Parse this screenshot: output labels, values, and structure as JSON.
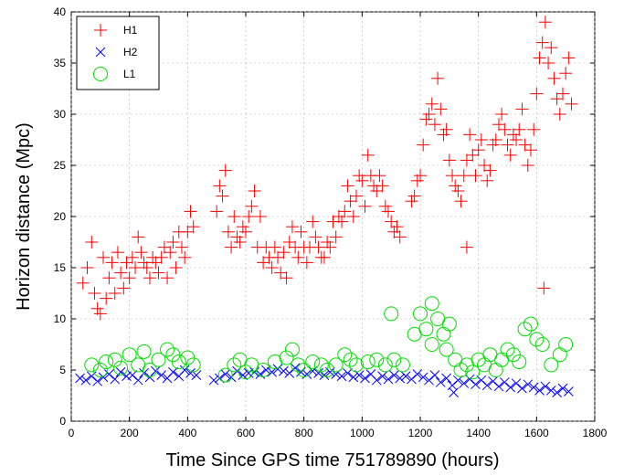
{
  "chart_data": {
    "type": "scatter",
    "title": "",
    "xlabel": "Time Since GPS time 751789890 (hours)",
    "ylabel": "Horizon distance (Mpc)",
    "xlim": [
      0,
      1800
    ],
    "ylim": [
      0,
      40
    ],
    "xticks": [
      0,
      200,
      400,
      600,
      800,
      1000,
      1200,
      1400,
      1600,
      1800
    ],
    "yticks": [
      0,
      5,
      10,
      15,
      20,
      25,
      30,
      35,
      40
    ],
    "grid": true,
    "legend_position": "top-left",
    "series": [
      {
        "name": "H1",
        "marker": "plus",
        "color": "#ff0000",
        "points": [
          [
            40,
            13.5
          ],
          [
            55,
            15.0
          ],
          [
            70,
            17.5
          ],
          [
            80,
            12.5
          ],
          [
            90,
            11.0
          ],
          [
            100,
            10.5
          ],
          [
            110,
            16.0
          ],
          [
            120,
            12.0
          ],
          [
            130,
            14.0
          ],
          [
            140,
            15.5
          ],
          [
            150,
            12.5
          ],
          [
            160,
            16.5
          ],
          [
            170,
            14.5
          ],
          [
            180,
            13.0
          ],
          [
            190,
            15.5
          ],
          [
            200,
            14.0
          ],
          [
            210,
            16.0
          ],
          [
            220,
            15.0
          ],
          [
            230,
            18.0
          ],
          [
            240,
            16.5
          ],
          [
            250,
            15.5
          ],
          [
            260,
            15.0
          ],
          [
            270,
            14.0
          ],
          [
            280,
            16.0
          ],
          [
            290,
            15.5
          ],
          [
            300,
            14.5
          ],
          [
            310,
            16.0
          ],
          [
            320,
            17.0
          ],
          [
            330,
            14.0
          ],
          [
            340,
            16.5
          ],
          [
            350,
            17.5
          ],
          [
            360,
            15.0
          ],
          [
            370,
            18.5
          ],
          [
            380,
            17.0
          ],
          [
            390,
            16.0
          ],
          [
            400,
            18.5
          ],
          [
            410,
            20.5
          ],
          [
            420,
            19.0
          ],
          [
            500,
            20.5
          ],
          [
            510,
            23.0
          ],
          [
            520,
            22.0
          ],
          [
            530,
            24.5
          ],
          [
            540,
            18.5
          ],
          [
            550,
            17.0
          ],
          [
            560,
            20.0
          ],
          [
            570,
            18.0
          ],
          [
            580,
            17.5
          ],
          [
            590,
            19.0
          ],
          [
            600,
            18.5
          ],
          [
            610,
            20.0
          ],
          [
            620,
            21.0
          ],
          [
            630,
            22.5
          ],
          [
            640,
            17.0
          ],
          [
            650,
            20.0
          ],
          [
            660,
            15.5
          ],
          [
            670,
            17.0
          ],
          [
            680,
            16.0
          ],
          [
            690,
            15.0
          ],
          [
            700,
            17.0
          ],
          [
            710,
            16.0
          ],
          [
            720,
            14.5
          ],
          [
            730,
            16.5
          ],
          [
            740,
            14.0
          ],
          [
            750,
            17.5
          ],
          [
            760,
            19.0
          ],
          [
            770,
            17.0
          ],
          [
            780,
            16.0
          ],
          [
            790,
            18.5
          ],
          [
            800,
            17.0
          ],
          [
            810,
            15.5
          ],
          [
            820,
            17.0
          ],
          [
            830,
            19.5
          ],
          [
            840,
            18.0
          ],
          [
            850,
            17.0
          ],
          [
            860,
            16.0
          ],
          [
            870,
            16.0
          ],
          [
            880,
            17.5
          ],
          [
            890,
            17.0
          ],
          [
            900,
            19.5
          ],
          [
            910,
            18.0
          ],
          [
            920,
            20.0
          ],
          [
            930,
            19.5
          ],
          [
            940,
            20.5
          ],
          [
            950,
            23.0
          ],
          [
            960,
            21.5
          ],
          [
            970,
            20.0
          ],
          [
            980,
            22.0
          ],
          [
            990,
            24.0
          ],
          [
            1000,
            23.5
          ],
          [
            1010,
            21.0
          ],
          [
            1020,
            26.0
          ],
          [
            1030,
            24.0
          ],
          [
            1040,
            23.0
          ],
          [
            1050,
            22.5
          ],
          [
            1060,
            24.0
          ],
          [
            1070,
            23.0
          ],
          [
            1080,
            21.0
          ],
          [
            1090,
            20.5
          ],
          [
            1100,
            19.5
          ],
          [
            1110,
            18.5
          ],
          [
            1120,
            19.0
          ],
          [
            1130,
            18.0
          ],
          [
            1170,
            21.5
          ],
          [
            1180,
            22.0
          ],
          [
            1190,
            23.5
          ],
          [
            1200,
            24.0
          ],
          [
            1210,
            27.0
          ],
          [
            1220,
            29.5
          ],
          [
            1230,
            30.0
          ],
          [
            1240,
            31.0
          ],
          [
            1250,
            29.0
          ],
          [
            1260,
            33.5
          ],
          [
            1270,
            30.5
          ],
          [
            1280,
            28.0
          ],
          [
            1290,
            28.5
          ],
          [
            1300,
            25.5
          ],
          [
            1310,
            24.0
          ],
          [
            1320,
            23.0
          ],
          [
            1330,
            22.5
          ],
          [
            1340,
            21.5
          ],
          [
            1350,
            24.0
          ],
          [
            1360,
            25.5
          ],
          [
            1370,
            28.0
          ],
          [
            1380,
            26.0
          ],
          [
            1390,
            24.0
          ],
          [
            1400,
            26.5
          ],
          [
            1410,
            27.5
          ],
          [
            1420,
            25.0
          ],
          [
            1430,
            23.5
          ],
          [
            1440,
            24.5
          ],
          [
            1450,
            27.0
          ],
          [
            1460,
            27.5
          ],
          [
            1470,
            29.0
          ],
          [
            1480,
            30.0
          ],
          [
            1490,
            28.5
          ],
          [
            1500,
            27.0
          ],
          [
            1510,
            26.0
          ],
          [
            1520,
            28.0
          ],
          [
            1530,
            27.5
          ],
          [
            1540,
            28.5
          ],
          [
            1550,
            30.5
          ],
          [
            1560,
            27.0
          ],
          [
            1570,
            25.0
          ],
          [
            1580,
            26.5
          ],
          [
            1590,
            28.5
          ],
          [
            1600,
            32.0
          ],
          [
            1610,
            35.5
          ],
          [
            1620,
            37.0
          ],
          [
            1630,
            39.0
          ],
          [
            1640,
            35.0
          ],
          [
            1650,
            36.5
          ],
          [
            1660,
            33.5
          ],
          [
            1670,
            31.5
          ],
          [
            1680,
            30.0
          ],
          [
            1690,
            32.0
          ],
          [
            1700,
            34.0
          ],
          [
            1710,
            35.5
          ],
          [
            1720,
            31.0
          ],
          [
            1625,
            13.0
          ],
          [
            1360,
            17.0
          ]
        ]
      },
      {
        "name": "H2",
        "marker": "x",
        "color": "#0000ff",
        "points": [
          [
            30,
            4.2
          ],
          [
            50,
            4.0
          ],
          [
            70,
            4.4
          ],
          [
            90,
            3.9
          ],
          [
            110,
            4.3
          ],
          [
            130,
            4.6
          ],
          [
            150,
            4.1
          ],
          [
            170,
            4.8
          ],
          [
            190,
            4.4
          ],
          [
            210,
            4.5
          ],
          [
            230,
            4.0
          ],
          [
            250,
            4.7
          ],
          [
            270,
            4.3
          ],
          [
            290,
            4.9
          ],
          [
            310,
            4.5
          ],
          [
            330,
            4.2
          ],
          [
            350,
            4.8
          ],
          [
            370,
            4.4
          ],
          [
            390,
            5.0
          ],
          [
            410,
            4.7
          ],
          [
            430,
            4.5
          ],
          [
            490,
            4.0
          ],
          [
            510,
            4.2
          ],
          [
            530,
            4.6
          ],
          [
            550,
            4.3
          ],
          [
            570,
            4.9
          ],
          [
            590,
            4.5
          ],
          [
            610,
            4.7
          ],
          [
            630,
            4.8
          ],
          [
            650,
            4.6
          ],
          [
            670,
            5.0
          ],
          [
            690,
            4.8
          ],
          [
            710,
            5.1
          ],
          [
            730,
            4.9
          ],
          [
            750,
            4.7
          ],
          [
            770,
            5.2
          ],
          [
            790,
            4.8
          ],
          [
            810,
            4.6
          ],
          [
            830,
            4.9
          ],
          [
            850,
            4.7
          ],
          [
            870,
            4.5
          ],
          [
            890,
            4.8
          ],
          [
            910,
            4.6
          ],
          [
            930,
            4.4
          ],
          [
            950,
            4.7
          ],
          [
            970,
            4.3
          ],
          [
            990,
            4.5
          ],
          [
            1010,
            4.2
          ],
          [
            1030,
            4.6
          ],
          [
            1050,
            4.0
          ],
          [
            1070,
            4.4
          ],
          [
            1090,
            4.1
          ],
          [
            1110,
            4.5
          ],
          [
            1130,
            4.2
          ],
          [
            1150,
            4.4
          ],
          [
            1170,
            4.1
          ],
          [
            1190,
            4.6
          ],
          [
            1210,
            4.3
          ],
          [
            1230,
            4.0
          ],
          [
            1250,
            4.5
          ],
          [
            1270,
            3.8
          ],
          [
            1290,
            4.2
          ],
          [
            1310,
            3.5
          ],
          [
            1330,
            4.0
          ],
          [
            1350,
            3.7
          ],
          [
            1370,
            4.1
          ],
          [
            1390,
            3.6
          ],
          [
            1410,
            4.0
          ],
          [
            1430,
            3.5
          ],
          [
            1450,
            3.9
          ],
          [
            1470,
            3.4
          ],
          [
            1490,
            3.8
          ],
          [
            1510,
            3.3
          ],
          [
            1530,
            3.7
          ],
          [
            1550,
            3.2
          ],
          [
            1570,
            3.6
          ],
          [
            1590,
            3.3
          ],
          [
            1610,
            3.0
          ],
          [
            1630,
            3.4
          ],
          [
            1650,
            3.0
          ],
          [
            1670,
            2.8
          ],
          [
            1690,
            3.2
          ],
          [
            1710,
            2.9
          ],
          [
            1315,
            2.8
          ]
        ]
      },
      {
        "name": "L1",
        "marker": "circle",
        "color": "#00dd00",
        "points": [
          [
            70,
            5.5
          ],
          [
            100,
            5.0
          ],
          [
            120,
            5.8
          ],
          [
            150,
            6.0
          ],
          [
            170,
            5.2
          ],
          [
            200,
            6.5
          ],
          [
            230,
            5.5
          ],
          [
            250,
            6.8
          ],
          [
            270,
            5.0
          ],
          [
            300,
            6.0
          ],
          [
            330,
            7.0
          ],
          [
            350,
            6.5
          ],
          [
            370,
            5.8
          ],
          [
            400,
            6.2
          ],
          [
            420,
            5.5
          ],
          [
            530,
            4.5
          ],
          [
            560,
            5.5
          ],
          [
            580,
            6.0
          ],
          [
            600,
            4.8
          ],
          [
            620,
            5.5
          ],
          [
            660,
            5.0
          ],
          [
            700,
            5.8
          ],
          [
            740,
            6.2
          ],
          [
            760,
            7.0
          ],
          [
            780,
            5.5
          ],
          [
            800,
            5.0
          ],
          [
            830,
            5.8
          ],
          [
            860,
            5.5
          ],
          [
            880,
            5.0
          ],
          [
            910,
            5.5
          ],
          [
            940,
            6.5
          ],
          [
            960,
            6.0
          ],
          [
            980,
            5.5
          ],
          [
            1020,
            5.8
          ],
          [
            1050,
            6.0
          ],
          [
            1080,
            5.5
          ],
          [
            1110,
            6.0
          ],
          [
            1140,
            5.5
          ],
          [
            1180,
            8.5
          ],
          [
            1200,
            10.5
          ],
          [
            1220,
            9.0
          ],
          [
            1240,
            7.5
          ],
          [
            1260,
            10.0
          ],
          [
            1280,
            8.5
          ],
          [
            1300,
            9.5
          ],
          [
            1320,
            6.0
          ],
          [
            1340,
            5.0
          ],
          [
            1360,
            5.5
          ],
          [
            1380,
            4.8
          ],
          [
            1400,
            6.0
          ],
          [
            1420,
            5.5
          ],
          [
            1440,
            6.5
          ],
          [
            1460,
            5.0
          ],
          [
            1480,
            6.0
          ],
          [
            1500,
            7.0
          ],
          [
            1520,
            6.5
          ],
          [
            1540,
            5.8
          ],
          [
            1560,
            9.0
          ],
          [
            1580,
            9.5
          ],
          [
            1600,
            8.0
          ],
          [
            1620,
            7.5
          ],
          [
            1650,
            5.5
          ],
          [
            1680,
            6.5
          ],
          [
            1700,
            7.5
          ],
          [
            1100,
            10.5
          ],
          [
            1240,
            11.5
          ],
          [
            1290,
            7.0
          ]
        ]
      }
    ]
  }
}
